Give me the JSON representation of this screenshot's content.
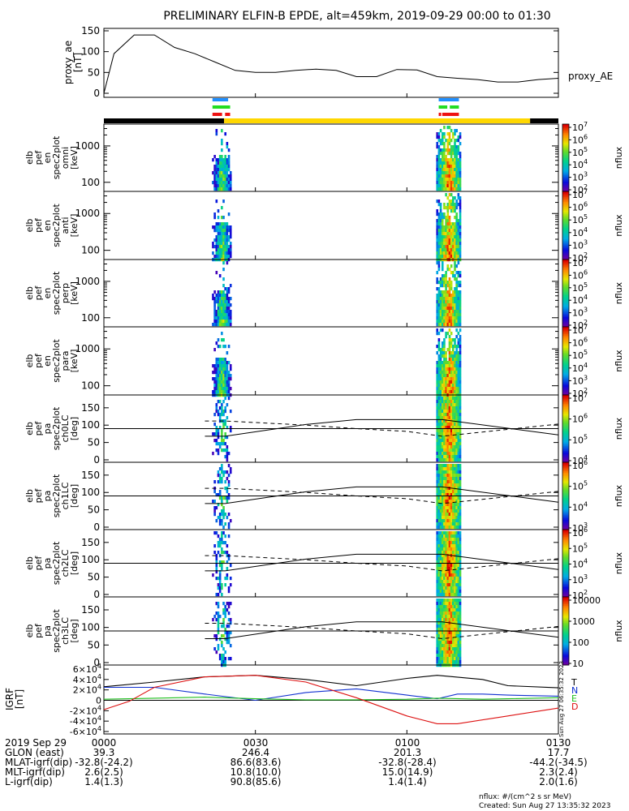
{
  "title": "PRELIMINARY ELFIN-B EPDE, alt=459km, 2019-09-29 00:00 to 01:30",
  "colors": {
    "line": "#000000",
    "bar_blue": "#1f8fff",
    "bar_green": "#22dd22",
    "bar_red": "#ee1111",
    "day_yellow": "#ffd700",
    "night_black": "#000000",
    "igrf_T": "#000000",
    "igrf_N": "#1030d0",
    "igrf_E": "#20c020",
    "igrf_D": "#dd1010"
  },
  "chart_data": [
    {
      "type": "line",
      "panel": "proxy_ae",
      "ylabel": "proxy_ae\n[nT]",
      "ylim": [
        0,
        150
      ],
      "yticks": [
        "0",
        "50",
        "100",
        "150"
      ],
      "legend": "proxy_AE",
      "series": [
        {
          "name": "proxy_AE",
          "x": [
            0,
            2,
            6,
            10,
            14,
            18,
            22,
            26,
            30,
            34,
            38,
            42,
            46,
            50,
            54,
            58,
            62,
            66,
            70,
            74,
            78,
            82,
            86,
            90
          ],
          "values": [
            0,
            95,
            140,
            140,
            110,
            95,
            75,
            55,
            50,
            50,
            55,
            58,
            55,
            40,
            40,
            57,
            56,
            40,
            36,
            33,
            27,
            27,
            33,
            36
          ]
        }
      ]
    },
    {
      "type": "heatmap",
      "panel": "omni",
      "ylabel": "elb\npef\nen\nspec2plot\nomni\n[keV]",
      "yscale": "log",
      "yticks": [
        "100",
        "1000"
      ],
      "colorbar": {
        "label": "nflux",
        "ticks": [
          "10^2",
          "10^3",
          "10^4",
          "10^5",
          "10^6",
          "10^7"
        ]
      }
    },
    {
      "type": "heatmap",
      "panel": "anti",
      "ylabel": "elb\npef\nen\nspec2plot\nanti\n[keV]",
      "yscale": "log",
      "yticks": [
        "100",
        "1000"
      ],
      "colorbar": {
        "label": "nflux",
        "ticks": [
          "10^2",
          "10^3",
          "10^4",
          "10^5",
          "10^6",
          "10^7"
        ]
      }
    },
    {
      "type": "heatmap",
      "panel": "perp",
      "ylabel": "elb\npef\nen\nspec2plot\nperp\n[keV]",
      "yscale": "log",
      "yticks": [
        "100",
        "1000"
      ],
      "colorbar": {
        "label": "nflux",
        "ticks": [
          "10^2",
          "10^3",
          "10^4",
          "10^5",
          "10^6",
          "10^7"
        ]
      }
    },
    {
      "type": "heatmap",
      "panel": "para",
      "ylabel": "elb\npef\nen\nspec2plot\npara\n[keV]",
      "yscale": "log",
      "yticks": [
        "100",
        "1000"
      ],
      "colorbar": {
        "label": "nflux",
        "ticks": [
          "10^2",
          "10^3",
          "10^4",
          "10^5",
          "10^6",
          "10^7"
        ]
      }
    },
    {
      "type": "heatmap",
      "panel": "ch0LC",
      "ylabel": "elb\npef\npa\nspec2plot\nch0LC\n[deg]",
      "ylim": [
        0,
        180
      ],
      "yticks": [
        "0",
        "50",
        "100",
        "150"
      ],
      "colorbar": {
        "label": "nflux",
        "ticks": [
          "10^4",
          "10^5",
          "10^6",
          "10^7"
        ]
      }
    },
    {
      "type": "heatmap",
      "panel": "ch1LC",
      "ylabel": "elb\npef\npa\nspec2plot\nch1LC\n[deg]",
      "ylim": [
        0,
        180
      ],
      "yticks": [
        "0",
        "50",
        "100",
        "150"
      ],
      "colorbar": {
        "label": "nflux",
        "ticks": [
          "10^3",
          "10^4",
          "10^5",
          "10^6"
        ]
      }
    },
    {
      "type": "heatmap",
      "panel": "ch2LC",
      "ylabel": "elb\npef\npa\nspec2plot\nch2LC\n[deg]",
      "ylim": [
        0,
        180
      ],
      "yticks": [
        "0",
        "50",
        "100",
        "150"
      ],
      "colorbar": {
        "label": "nflux",
        "ticks": [
          "10^2",
          "10^3",
          "10^4",
          "10^5",
          "10^6"
        ]
      }
    },
    {
      "type": "heatmap",
      "panel": "ch3LC",
      "ylabel": "elb\npef\npa\nspec2plot\nch3LC\n[deg]",
      "ylim": [
        0,
        180
      ],
      "yticks": [
        "0",
        "50",
        "100",
        "150"
      ],
      "colorbar": {
        "label": "nflux",
        "ticks": [
          "10",
          "100",
          "1000",
          "10000"
        ]
      }
    },
    {
      "type": "line",
      "panel": "IGRF",
      "ylabel": "IGRF\n[nT]",
      "ylim": [
        -60000,
        60000
      ],
      "yticks": [
        "-6×10^4",
        "-4×10^4",
        "-2×10^4",
        "0",
        "2×10^4",
        "4×10^4",
        "6×10^4"
      ],
      "legend_labels": [
        "T",
        "N",
        "E",
        "D"
      ],
      "series": [
        {
          "name": "T",
          "x": [
            0,
            10,
            20,
            30,
            40,
            50,
            60,
            66,
            75,
            80,
            90
          ],
          "values": [
            26000,
            35000,
            45000,
            48000,
            40000,
            28000,
            42000,
            48000,
            40000,
            28000,
            24000
          ]
        },
        {
          "name": "N",
          "x": [
            0,
            10,
            20,
            30,
            40,
            50,
            60,
            66,
            70,
            75,
            80,
            90
          ],
          "values": [
            25000,
            25000,
            12000,
            0,
            15000,
            22000,
            10000,
            3000,
            12000,
            12000,
            10000,
            8000
          ]
        },
        {
          "name": "E",
          "x": [
            0,
            10,
            20,
            30,
            40,
            50,
            60,
            66,
            75,
            80,
            90
          ],
          "values": [
            2000,
            4000,
            6000,
            3000,
            1000,
            1000,
            2000,
            4000,
            2000,
            3000,
            5000
          ]
        },
        {
          "name": "D",
          "x": [
            0,
            5,
            10,
            20,
            30,
            40,
            50,
            60,
            66,
            70,
            80,
            90
          ],
          "values": [
            -18000,
            -2000,
            25000,
            45000,
            48000,
            35000,
            5000,
            -30000,
            -45000,
            -45000,
            -30000,
            -15000
          ]
        }
      ]
    }
  ],
  "xaxis": {
    "labels": [
      "0000",
      "0030",
      "0100",
      "0130"
    ],
    "rows": [
      {
        "label": "2019 Sep 29",
        "values": [
          "0000",
          "0030",
          "0100",
          "0130"
        ]
      },
      {
        "label": "GLON (east)",
        "values": [
          "39.3",
          "246.4",
          "201.3",
          "17.7"
        ]
      },
      {
        "label": "MLAT-igrf(dip)",
        "values": [
          "-32.8(-24.2)",
          "86.6(83.6)",
          "-32.8(-28.4)",
          "-44.2(-34.5)"
        ]
      },
      {
        "label": "MLT-igrf(dip)",
        "values": [
          "2.6(2.5)",
          "10.8(10.0)",
          "15.0(14.9)",
          "2.3(2.4)"
        ]
      },
      {
        "label": "L-igrf(dip)",
        "values": [
          "1.4(1.3)",
          "90.8(85.6)",
          "1.4(1.4)",
          "2.0(1.6)"
        ]
      }
    ]
  },
  "footer": {
    "units": "nflux: #/(cm^2 s sr MeV)",
    "created": "Created: Sun Aug 27 13:35:32 2023",
    "side_stamp": "Sun Aug 27 06:35:32 2023"
  }
}
